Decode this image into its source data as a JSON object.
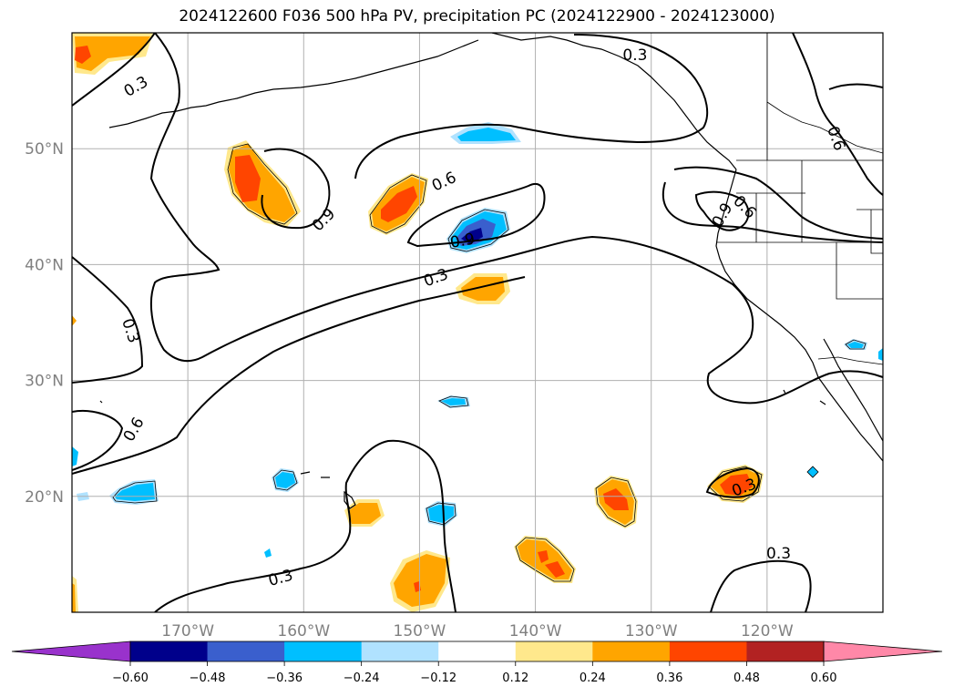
{
  "title": "2024122600 F036 500 hPa PV, precipitation PC (2024122900 - 2024123000)",
  "map": {
    "lon_range": [
      -180,
      -110
    ],
    "lat_range": [
      10,
      60
    ],
    "lat_ticks": [
      {
        "value": 50,
        "label": "50°N"
      },
      {
        "value": 40,
        "label": "40°N"
      },
      {
        "value": 30,
        "label": "30°N"
      },
      {
        "value": 20,
        "label": "20°N"
      }
    ],
    "lon_ticks": [
      {
        "value": -170,
        "label": "170°W"
      },
      {
        "value": -160,
        "label": "160°W"
      },
      {
        "value": -150,
        "label": "150°W"
      },
      {
        "value": -140,
        "label": "140°W"
      },
      {
        "value": -130,
        "label": "130°W"
      },
      {
        "value": -120,
        "label": "120°W"
      }
    ],
    "tick_label_color": "#808080",
    "grid": true
  },
  "contour_labels": [
    {
      "text": "0.3",
      "lon": -174.5,
      "lat": 55.4,
      "angle": -30
    },
    {
      "text": "0.3",
      "lon": -174.9,
      "lat": 34.3,
      "angle": 72
    },
    {
      "text": "0.6",
      "lon": -174.7,
      "lat": 25.8,
      "angle": -60
    },
    {
      "text": "0.9",
      "lon": -158.3,
      "lat": 43.9,
      "angle": -45
    },
    {
      "text": "0.6",
      "lon": -147.9,
      "lat": 47.2,
      "angle": -25
    },
    {
      "text": "0.9",
      "lon": -146.3,
      "lat": 42.1,
      "angle": -10
    },
    {
      "text": "0.3",
      "lon": -148.6,
      "lat": 38.9,
      "angle": -20
    },
    {
      "text": "0.3",
      "lon": -131.4,
      "lat": 58.1,
      "angle": 0
    },
    {
      "text": "0.6",
      "lon": -114.0,
      "lat": 50.9,
      "angle": 70
    },
    {
      "text": "0.9",
      "lon": -123.9,
      "lat": 44.3,
      "angle": -60
    },
    {
      "text": "0.6",
      "lon": -121.9,
      "lat": 45.0,
      "angle": 45
    },
    {
      "text": "0.3",
      "lon": -162.0,
      "lat": 13.0,
      "angle": -15
    },
    {
      "text": "0.3",
      "lon": -119.0,
      "lat": 15.1,
      "angle": 0
    },
    {
      "text": "0.3",
      "lon": -122.0,
      "lat": 20.8,
      "angle": -20
    }
  ],
  "colorbar": {
    "levels": [
      "−0.60",
      "−0.48",
      "−0.36",
      "−0.24",
      "−0.12",
      "0.12",
      "0.24",
      "0.36",
      "0.48",
      "0.60"
    ],
    "colors": [
      "#9932cc",
      "#00008b",
      "#3a5fcd",
      "#00bfff",
      "#b0e2ff",
      "#ffffff",
      "#ffe88c",
      "#ffa500",
      "#ff4500",
      "#b22222",
      "#ff88a8"
    ]
  }
}
